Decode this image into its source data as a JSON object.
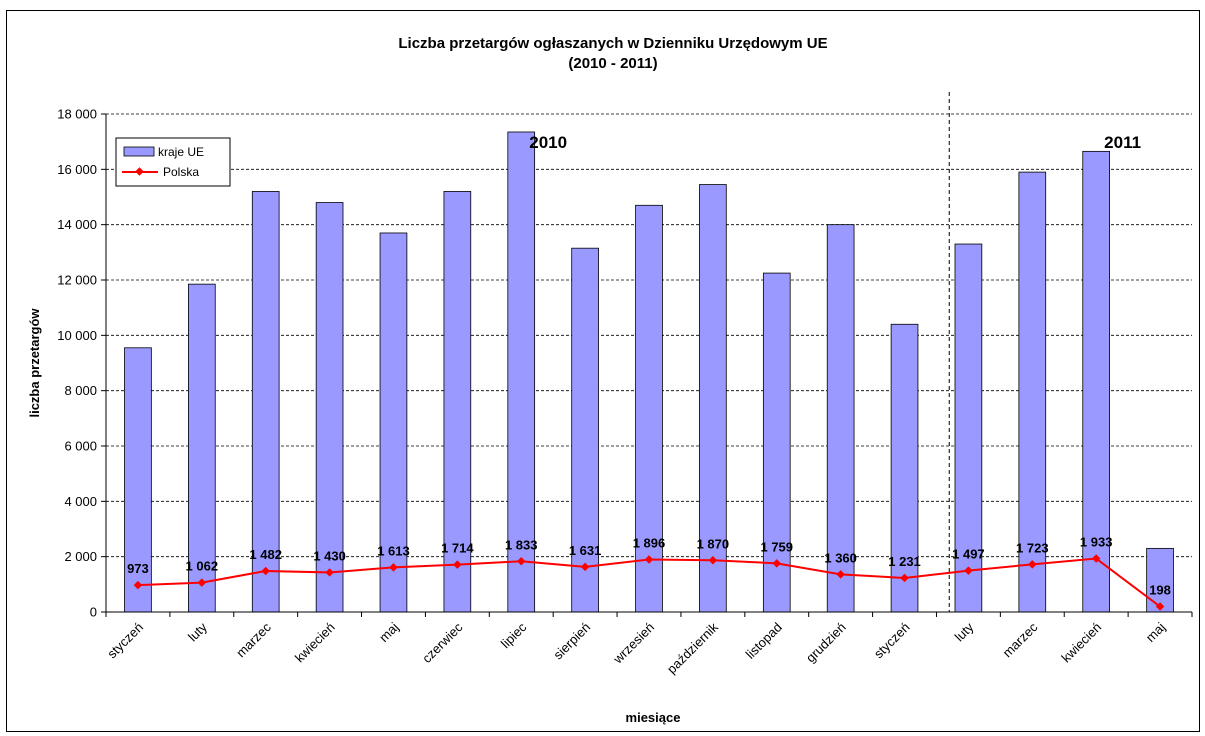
{
  "chart_data": {
    "type": "bar",
    "title": "Liczba przetargów ogłaszanych w Dzienniku Urzędowym UE",
    "subtitle": "(2010 - 2011)",
    "xlabel": "miesiące",
    "ylabel": "liczba przetargów",
    "ylim": [
      0,
      18000
    ],
    "yticks": [
      "0",
      "2 000",
      "4 000",
      "6 000",
      "8 000",
      "10 000",
      "12 000",
      "14 000",
      "16 000",
      "18 000"
    ],
    "grid": true,
    "legend_position": "top-left",
    "categories": [
      "styczeń",
      "luty",
      "marzec",
      "kwiecień",
      "maj",
      "czerwiec",
      "lipiec",
      "sierpień",
      "wrzesień",
      "październik",
      "listopad",
      "grudzień",
      "styczeń",
      "luty",
      "marzec",
      "kwiecień",
      "maj"
    ],
    "series": [
      {
        "name": "kraje UE",
        "type": "bar",
        "color": "#9999ff",
        "values": [
          9550,
          11850,
          15200,
          14800,
          13700,
          15200,
          17350,
          13150,
          14700,
          15450,
          12250,
          14000,
          10400,
          13300,
          15900,
          16650,
          2300
        ]
      },
      {
        "name": "Polska",
        "type": "line",
        "color": "#ff0000",
        "values": [
          973,
          1062,
          1482,
          1430,
          1613,
          1714,
          1833,
          1631,
          1896,
          1870,
          1759,
          1360,
          1231,
          1497,
          1723,
          1933,
          198
        ],
        "labels": [
          "973",
          "1 062",
          "1 482",
          "1 430",
          "1 613",
          "1 714",
          "1 833",
          "1 631",
          "1 896",
          "1 870",
          "1 759",
          "1 360",
          "1 231",
          "1 497",
          "1 723",
          "1 933",
          "198"
        ]
      }
    ],
    "annotations": [
      {
        "text": "2010",
        "near_category_index": 6
      },
      {
        "text": "2011",
        "near_category_index": 15
      }
    ],
    "divider_between_indices": [
      12,
      13
    ]
  }
}
